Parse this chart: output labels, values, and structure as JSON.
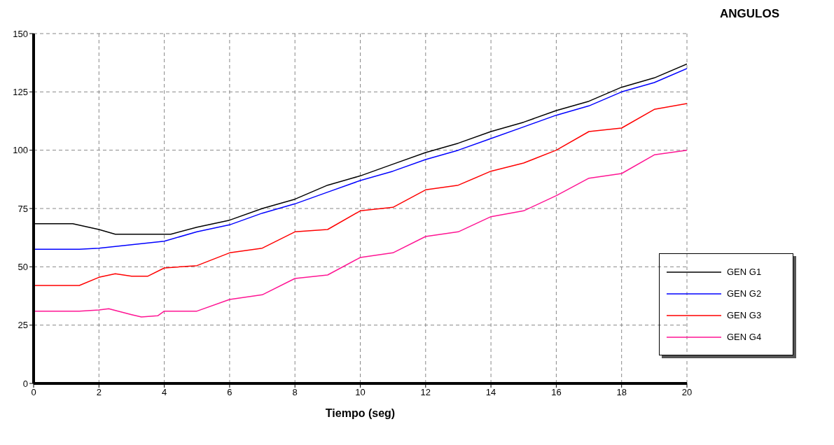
{
  "chart_data": {
    "type": "line",
    "title": "ANGULOS",
    "xlabel": "Tiempo (seg)",
    "xlim": [
      0,
      20
    ],
    "xticks": [
      0,
      2,
      4,
      6,
      8,
      10,
      12,
      14,
      16,
      18,
      20
    ],
    "ylim": [
      0,
      150
    ],
    "yticks": [
      0,
      25,
      50,
      75,
      100,
      125,
      150
    ],
    "grid": true,
    "legend": "bottom right",
    "line_style": "solid",
    "marker": "none",
    "series": [
      {
        "name": "GEN G1",
        "color": "#000000",
        "x": [
          0,
          1.2,
          2,
          2.5,
          4.2,
          5,
          6,
          7,
          8,
          9,
          10,
          11,
          12,
          13,
          14,
          15,
          16,
          17,
          18,
          19,
          20
        ],
        "values": [
          68.5,
          68.5,
          66,
          64,
          64,
          67,
          70,
          75,
          79,
          85,
          89,
          94,
          99,
          103,
          108,
          112,
          117,
          121,
          127,
          131,
          137
        ]
      },
      {
        "name": "GEN G2",
        "color": "#0000ff",
        "x": [
          0,
          1.4,
          2,
          3,
          4,
          5,
          6,
          7,
          8,
          9,
          10,
          11,
          12,
          13,
          14,
          15,
          16,
          17,
          18,
          19,
          20
        ],
        "values": [
          57.5,
          57.5,
          58,
          59.5,
          61,
          65,
          68,
          73,
          77,
          82,
          87,
          91,
          96,
          100,
          105,
          110,
          115,
          119,
          125,
          129,
          135
        ]
      },
      {
        "name": "GEN G3",
        "color": "#ff0000",
        "x": [
          0,
          1.4,
          2,
          2.5,
          3,
          3.5,
          4,
          5,
          6,
          7,
          8,
          9,
          10,
          11,
          12,
          13,
          14,
          15,
          16,
          17,
          18,
          19,
          20
        ],
        "values": [
          42,
          42,
          45.5,
          47,
          46,
          46,
          49.5,
          50.5,
          56,
          58,
          65,
          66,
          74,
          75.5,
          83,
          85,
          91,
          94.5,
          100,
          108,
          109.5,
          117.5,
          120
        ]
      },
      {
        "name": "GEN G4",
        "color": "#ff1493",
        "x": [
          0,
          1.4,
          2,
          2.3,
          3,
          3.3,
          3.8,
          4,
          5,
          6,
          7,
          8,
          9,
          10,
          11,
          12,
          13,
          14,
          15,
          16,
          17,
          18,
          19,
          20
        ],
        "values": [
          31,
          31,
          31.5,
          32,
          29.5,
          28.5,
          29,
          31,
          31,
          36,
          38,
          45,
          46.5,
          54,
          56,
          63,
          65,
          71.5,
          74,
          80.5,
          88,
          90,
          98,
          100
        ]
      }
    ]
  }
}
